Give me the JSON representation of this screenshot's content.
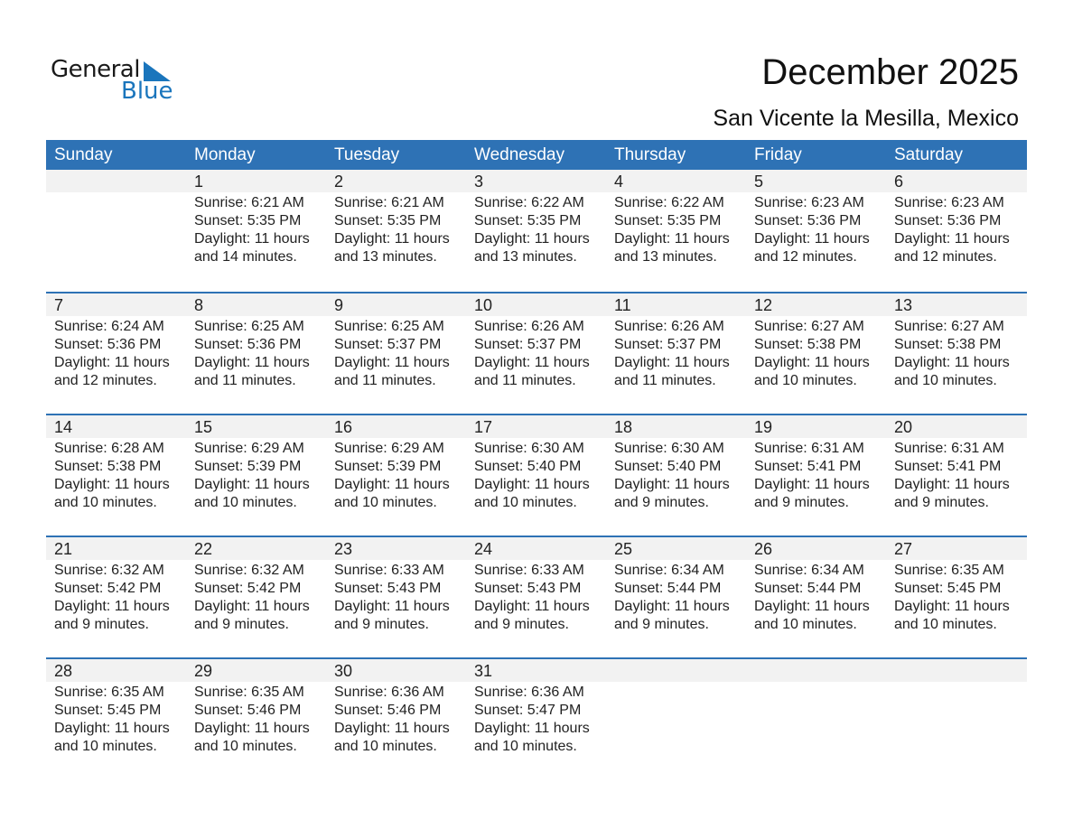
{
  "logo": {
    "text1": "General",
    "text2": "Blue",
    "accent": "#1a75bc"
  },
  "title": "December 2025",
  "location": "San Vicente la Mesilla, Mexico",
  "header_color": "#2e72b5",
  "days": [
    "Sunday",
    "Monday",
    "Tuesday",
    "Wednesday",
    "Thursday",
    "Friday",
    "Saturday"
  ],
  "weeks": [
    [
      null,
      {
        "d": "1",
        "rise": "Sunrise: 6:21 AM",
        "set": "Sunset: 5:35 PM",
        "dl": "Daylight: 11 hours",
        "min": "and 14 minutes."
      },
      {
        "d": "2",
        "rise": "Sunrise: 6:21 AM",
        "set": "Sunset: 5:35 PM",
        "dl": "Daylight: 11 hours",
        "min": "and 13 minutes."
      },
      {
        "d": "3",
        "rise": "Sunrise: 6:22 AM",
        "set": "Sunset: 5:35 PM",
        "dl": "Daylight: 11 hours",
        "min": "and 13 minutes."
      },
      {
        "d": "4",
        "rise": "Sunrise: 6:22 AM",
        "set": "Sunset: 5:35 PM",
        "dl": "Daylight: 11 hours",
        "min": "and 13 minutes."
      },
      {
        "d": "5",
        "rise": "Sunrise: 6:23 AM",
        "set": "Sunset: 5:36 PM",
        "dl": "Daylight: 11 hours",
        "min": "and 12 minutes."
      },
      {
        "d": "6",
        "rise": "Sunrise: 6:23 AM",
        "set": "Sunset: 5:36 PM",
        "dl": "Daylight: 11 hours",
        "min": "and 12 minutes."
      }
    ],
    [
      {
        "d": "7",
        "rise": "Sunrise: 6:24 AM",
        "set": "Sunset: 5:36 PM",
        "dl": "Daylight: 11 hours",
        "min": "and 12 minutes."
      },
      {
        "d": "8",
        "rise": "Sunrise: 6:25 AM",
        "set": "Sunset: 5:36 PM",
        "dl": "Daylight: 11 hours",
        "min": "and 11 minutes."
      },
      {
        "d": "9",
        "rise": "Sunrise: 6:25 AM",
        "set": "Sunset: 5:37 PM",
        "dl": "Daylight: 11 hours",
        "min": "and 11 minutes."
      },
      {
        "d": "10",
        "rise": "Sunrise: 6:26 AM",
        "set": "Sunset: 5:37 PM",
        "dl": "Daylight: 11 hours",
        "min": "and 11 minutes."
      },
      {
        "d": "11",
        "rise": "Sunrise: 6:26 AM",
        "set": "Sunset: 5:37 PM",
        "dl": "Daylight: 11 hours",
        "min": "and 11 minutes."
      },
      {
        "d": "12",
        "rise": "Sunrise: 6:27 AM",
        "set": "Sunset: 5:38 PM",
        "dl": "Daylight: 11 hours",
        "min": "and 10 minutes."
      },
      {
        "d": "13",
        "rise": "Sunrise: 6:27 AM",
        "set": "Sunset: 5:38 PM",
        "dl": "Daylight: 11 hours",
        "min": "and 10 minutes."
      }
    ],
    [
      {
        "d": "14",
        "rise": "Sunrise: 6:28 AM",
        "set": "Sunset: 5:38 PM",
        "dl": "Daylight: 11 hours",
        "min": "and 10 minutes."
      },
      {
        "d": "15",
        "rise": "Sunrise: 6:29 AM",
        "set": "Sunset: 5:39 PM",
        "dl": "Daylight: 11 hours",
        "min": "and 10 minutes."
      },
      {
        "d": "16",
        "rise": "Sunrise: 6:29 AM",
        "set": "Sunset: 5:39 PM",
        "dl": "Daylight: 11 hours",
        "min": "and 10 minutes."
      },
      {
        "d": "17",
        "rise": "Sunrise: 6:30 AM",
        "set": "Sunset: 5:40 PM",
        "dl": "Daylight: 11 hours",
        "min": "and 10 minutes."
      },
      {
        "d": "18",
        "rise": "Sunrise: 6:30 AM",
        "set": "Sunset: 5:40 PM",
        "dl": "Daylight: 11 hours",
        "min": "and 9 minutes."
      },
      {
        "d": "19",
        "rise": "Sunrise: 6:31 AM",
        "set": "Sunset: 5:41 PM",
        "dl": "Daylight: 11 hours",
        "min": "and 9 minutes."
      },
      {
        "d": "20",
        "rise": "Sunrise: 6:31 AM",
        "set": "Sunset: 5:41 PM",
        "dl": "Daylight: 11 hours",
        "min": "and 9 minutes."
      }
    ],
    [
      {
        "d": "21",
        "rise": "Sunrise: 6:32 AM",
        "set": "Sunset: 5:42 PM",
        "dl": "Daylight: 11 hours",
        "min": "and 9 minutes."
      },
      {
        "d": "22",
        "rise": "Sunrise: 6:32 AM",
        "set": "Sunset: 5:42 PM",
        "dl": "Daylight: 11 hours",
        "min": "and 9 minutes."
      },
      {
        "d": "23",
        "rise": "Sunrise: 6:33 AM",
        "set": "Sunset: 5:43 PM",
        "dl": "Daylight: 11 hours",
        "min": "and 9 minutes."
      },
      {
        "d": "24",
        "rise": "Sunrise: 6:33 AM",
        "set": "Sunset: 5:43 PM",
        "dl": "Daylight: 11 hours",
        "min": "and 9 minutes."
      },
      {
        "d": "25",
        "rise": "Sunrise: 6:34 AM",
        "set": "Sunset: 5:44 PM",
        "dl": "Daylight: 11 hours",
        "min": "and 9 minutes."
      },
      {
        "d": "26",
        "rise": "Sunrise: 6:34 AM",
        "set": "Sunset: 5:44 PM",
        "dl": "Daylight: 11 hours",
        "min": "and 10 minutes."
      },
      {
        "d": "27",
        "rise": "Sunrise: 6:35 AM",
        "set": "Sunset: 5:45 PM",
        "dl": "Daylight: 11 hours",
        "min": "and 10 minutes."
      }
    ],
    [
      {
        "d": "28",
        "rise": "Sunrise: 6:35 AM",
        "set": "Sunset: 5:45 PM",
        "dl": "Daylight: 11 hours",
        "min": "and 10 minutes."
      },
      {
        "d": "29",
        "rise": "Sunrise: 6:35 AM",
        "set": "Sunset: 5:46 PM",
        "dl": "Daylight: 11 hours",
        "min": "and 10 minutes."
      },
      {
        "d": "30",
        "rise": "Sunrise: 6:36 AM",
        "set": "Sunset: 5:46 PM",
        "dl": "Daylight: 11 hours",
        "min": "and 10 minutes."
      },
      {
        "d": "31",
        "rise": "Sunrise: 6:36 AM",
        "set": "Sunset: 5:47 PM",
        "dl": "Daylight: 11 hours",
        "min": "and 10 minutes."
      },
      null,
      null,
      null
    ]
  ]
}
